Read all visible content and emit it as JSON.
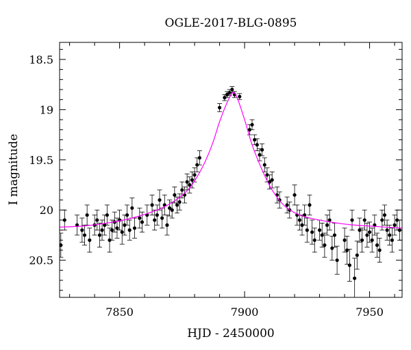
{
  "chart_data": {
    "type": "scatter",
    "title": "OGLE-2017-BLG-0895",
    "xlabel": "HJD - 2450000",
    "ylabel": "I magnitude",
    "xlim": [
      7826,
      7963
    ],
    "ylim": [
      20.87,
      18.33
    ],
    "y_inverted": true,
    "x_ticks": [
      7850,
      7900,
      7950
    ],
    "y_ticks": [
      18.5,
      19,
      19.5,
      20,
      20.5
    ],
    "x_tick_labels": [
      "7850",
      "7900",
      "7950"
    ],
    "y_tick_labels": [
      "18.5",
      "19",
      "19.5",
      "20",
      "20.5"
    ],
    "grid": false,
    "legend": "none",
    "colors": {
      "data": "#000000",
      "model": "#ff00ff",
      "frame": "#000000"
    },
    "model": {
      "name": "",
      "baseline_mag": 20.18,
      "peak_mag": 18.83,
      "t0": 7895.3,
      "x": [
        7826,
        7835,
        7845,
        7855,
        7865,
        7872,
        7878,
        7883,
        7887,
        7890,
        7893,
        7895.3,
        7897,
        7900,
        7903,
        7907,
        7911,
        7916,
        7922,
        7930,
        7940,
        7950,
        7963
      ],
      "y": [
        20.17,
        20.16,
        20.13,
        20.08,
        20.0,
        19.91,
        19.78,
        19.58,
        19.35,
        19.12,
        18.93,
        18.83,
        18.88,
        19.1,
        19.35,
        19.6,
        19.8,
        19.96,
        20.05,
        20.1,
        20.14,
        20.16,
        20.18
      ]
    },
    "series": [
      {
        "x": [
          7826.5,
          7828,
          7833,
          7835,
          7836,
          7837,
          7838,
          7840,
          7841,
          7842,
          7843,
          7844,
          7845,
          7846,
          7847,
          7848,
          7849,
          7850,
          7851,
          7852,
          7853,
          7854,
          7855,
          7856,
          7858,
          7859,
          7861,
          7863,
          7864,
          7865,
          7866,
          7867,
          7868,
          7869,
          7870,
          7871,
          7872,
          7873,
          7874,
          7875,
          7876,
          7877,
          7878,
          7879,
          7880,
          7881,
          7882,
          7890,
          7892,
          7893,
          7894,
          7895,
          7896,
          7898,
          7902,
          7903,
          7904,
          7905,
          7906,
          7907,
          7908,
          7909,
          7910,
          7911,
          7913,
          7914,
          7917,
          7918,
          7920,
          7921,
          7922,
          7923,
          7924,
          7925,
          7926,
          7927,
          7928,
          7930,
          7931,
          7932,
          7933,
          7934,
          7935,
          7936,
          7937,
          7940,
          7941,
          7942,
          7943,
          7944,
          7945,
          7946,
          7947,
          7948,
          7949,
          7950,
          7951,
          7952,
          7953,
          7954,
          7955,
          7956,
          7957,
          7958,
          7959,
          7960,
          7961,
          7962
        ],
        "y": [
          20.35,
          20.1,
          20.15,
          20.2,
          20.25,
          20.05,
          20.3,
          20.15,
          20.1,
          20.25,
          20.2,
          20.15,
          20.05,
          20.3,
          20.2,
          20.12,
          20.18,
          20.1,
          20.22,
          20.15,
          20.05,
          20.2,
          19.98,
          20.18,
          20.08,
          20.12,
          20.05,
          19.95,
          20.1,
          20.05,
          19.9,
          20.08,
          19.95,
          20.15,
          19.98,
          20.0,
          19.85,
          19.95,
          19.92,
          19.8,
          19.85,
          19.72,
          19.75,
          19.7,
          19.65,
          19.55,
          19.48,
          18.98,
          18.88,
          18.85,
          18.83,
          18.8,
          18.85,
          18.87,
          19.2,
          19.15,
          19.3,
          19.35,
          19.45,
          19.4,
          19.55,
          19.65,
          19.72,
          19.7,
          19.85,
          19.9,
          19.95,
          20.0,
          19.85,
          20.05,
          20.1,
          20.15,
          20.05,
          20.2,
          19.95,
          20.22,
          20.3,
          20.2,
          20.25,
          20.35,
          20.15,
          20.1,
          20.38,
          20.25,
          20.5,
          20.3,
          20.4,
          20.55,
          20.1,
          20.68,
          20.45,
          20.2,
          20.3,
          20.1,
          20.25,
          20.22,
          20.3,
          20.15,
          20.35,
          20.4,
          20.1,
          20.05,
          20.2,
          20.25,
          20.3,
          20.15,
          20.1,
          20.2
        ],
        "err": [
          0.12,
          0.1,
          0.1,
          0.12,
          0.1,
          0.1,
          0.12,
          0.1,
          0.1,
          0.12,
          0.1,
          0.1,
          0.1,
          0.12,
          0.1,
          0.1,
          0.1,
          0.1,
          0.12,
          0.1,
          0.1,
          0.1,
          0.1,
          0.1,
          0.1,
          0.1,
          0.1,
          0.1,
          0.1,
          0.1,
          0.1,
          0.1,
          0.1,
          0.1,
          0.08,
          0.08,
          0.08,
          0.08,
          0.08,
          0.08,
          0.08,
          0.08,
          0.08,
          0.08,
          0.07,
          0.07,
          0.07,
          0.04,
          0.03,
          0.03,
          0.03,
          0.03,
          0.03,
          0.03,
          0.05,
          0.05,
          0.05,
          0.06,
          0.06,
          0.06,
          0.07,
          0.07,
          0.07,
          0.08,
          0.08,
          0.08,
          0.08,
          0.08,
          0.1,
          0.1,
          0.1,
          0.1,
          0.1,
          0.12,
          0.1,
          0.12,
          0.12,
          0.1,
          0.12,
          0.12,
          0.1,
          0.1,
          0.12,
          0.12,
          0.14,
          0.12,
          0.14,
          0.16,
          0.1,
          0.2,
          0.14,
          0.12,
          0.12,
          0.1,
          0.12,
          0.1,
          0.12,
          0.1,
          0.12,
          0.12,
          0.1,
          0.1,
          0.1,
          0.1,
          0.12,
          0.1,
          0.1,
          0.1
        ]
      }
    ]
  }
}
